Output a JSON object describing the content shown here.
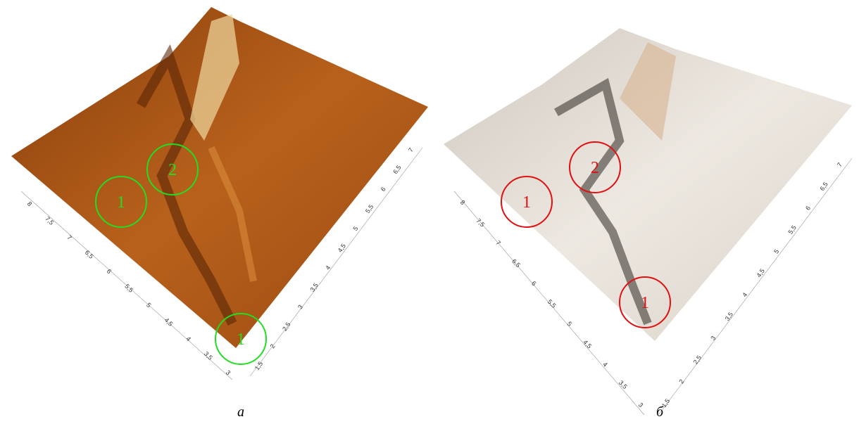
{
  "panels": [
    {
      "caption": "а",
      "left_axis_ticks": [
        "8",
        "7,5",
        "7",
        "6,5",
        "6",
        "5,5",
        "5",
        "4,5",
        "4",
        "3,5",
        "3"
      ],
      "right_axis_ticks": [
        "1,5",
        "2",
        "2,5",
        "3",
        "3,5",
        "4",
        "4,5",
        "5",
        "5,5",
        "6",
        "6,5",
        "7"
      ],
      "markers": [
        {
          "label": "1"
        },
        {
          "label": "2"
        },
        {
          "label": "1"
        }
      ]
    },
    {
      "caption": "б",
      "left_axis_ticks": [
        "8",
        "7,5",
        "7",
        "6,5",
        "6",
        "5,5",
        "5",
        "4,5",
        "4",
        "3,5",
        "3"
      ],
      "right_axis_ticks": [
        "1,5",
        "2",
        "2,5",
        "3",
        "3,5",
        "4",
        "4,5",
        "5",
        "5,5",
        "6",
        "6,5",
        "7"
      ],
      "markers": [
        {
          "label": "1"
        },
        {
          "label": "2"
        },
        {
          "label": "1"
        }
      ]
    }
  ]
}
